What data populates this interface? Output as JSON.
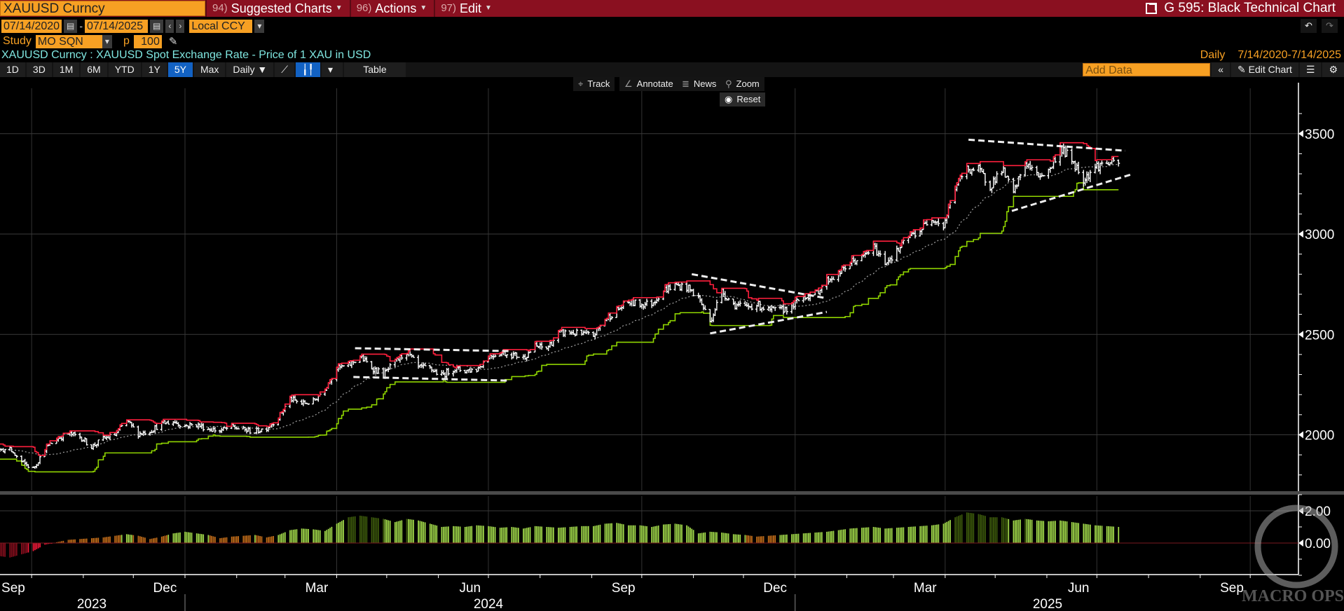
{
  "header": {
    "security": "XAUUSD Curncy",
    "menus": [
      {
        "num": "94)",
        "label": "Suggested Charts"
      },
      {
        "num": "96)",
        "label": "Actions"
      },
      {
        "num": "97)",
        "label": "Edit"
      }
    ],
    "function_title": "G 595: Black Technical Chart"
  },
  "dates": {
    "start": "07/14/2020",
    "end": "07/14/2025",
    "separator": "-",
    "currency": "Local CCY"
  },
  "study": {
    "label": "Study",
    "value": "MO SQN",
    "p_label": "p",
    "p_value": "100"
  },
  "description": "XAUUSD Curncy : XAUUSD Spot Exchange Rate - Price of 1 XAU in USD",
  "frequency": "Daily",
  "range_text": "7/14/2020-7/14/2025",
  "toolbar": {
    "periods": [
      "1D",
      "3D",
      "1M",
      "6M",
      "YTD",
      "1Y",
      "5Y",
      "Max"
    ],
    "selected": "5Y",
    "interval": "Daily ▼",
    "table": "Table",
    "add_data_placeholder": "Add Data",
    "edit_chart": "Edit Chart",
    "collapse": "«"
  },
  "chart_tools": {
    "track": "Track",
    "annotate": "Annotate",
    "news": "News",
    "zoom": "Zoom",
    "reset": "Reset"
  },
  "logo": {
    "text": "MACRO OPS"
  },
  "colors": {
    "header": "#8a1020",
    "field": "#f7a023",
    "upper_band": "#ff1f3d",
    "lower_band": "#8fd400",
    "bars": "#ffffff",
    "selected": "#1262c4"
  },
  "chart_data": {
    "type": "ohlc",
    "yticks": [
      2000,
      2500,
      3000,
      3500
    ],
    "indicator_ticks": [
      "0.00",
      "2.00"
    ],
    "indicator_values": [
      0,
      2
    ],
    "ylim": [
      1800,
      3650
    ],
    "xlim": [
      "2023-08-21",
      "2025-09-30"
    ],
    "x_month_labels": [
      {
        "d": "2023-09",
        "t": "Sep"
      },
      {
        "d": "2023-12",
        "t": "Dec"
      },
      {
        "d": "2024-03",
        "t": "Mar"
      },
      {
        "d": "2024-06",
        "t": "Jun"
      },
      {
        "d": "2024-09",
        "t": "Sep"
      },
      {
        "d": "2024-12",
        "t": "Dec"
      },
      {
        "d": "2025-03",
        "t": "Mar"
      },
      {
        "d": "2025-06",
        "t": "Jun"
      },
      {
        "d": "2025-09",
        "t": "Sep"
      }
    ],
    "x_year_labels": [
      "2023",
      "2024",
      "2025"
    ],
    "weekly_start": "2023-08-21",
    "weekly_close": [
      1915,
      1940,
      1920,
      1925,
      1925,
      1865,
      1830,
      1930,
      1980,
      2005,
      1990,
      1940,
      1980,
      2000,
      2070,
      2005,
      2020,
      2055,
      2065,
      2045,
      2050,
      2030,
      2020,
      2040,
      2025,
      2015,
      2035,
      2085,
      2180,
      2155,
      2165,
      2235,
      2330,
      2345,
      2390,
      2335,
      2300,
      2360,
      2415,
      2335,
      2330,
      2295,
      2330,
      2320,
      2325,
      2390,
      2410,
      2400,
      2385,
      2440,
      2430,
      2505,
      2510,
      2500,
      2495,
      2575,
      2620,
      2660,
      2650,
      2655,
      2720,
      2745,
      2735,
      2685,
      2565,
      2715,
      2650,
      2635,
      2650,
      2620,
      2620,
      2640,
      2690,
      2700,
      2770,
      2800,
      2860,
      2880,
      2935,
      2860,
      2910,
      2985,
      3020,
      3085,
      3040,
      3235,
      3325,
      3320,
      3240,
      3325,
      3200,
      3360,
      3290,
      3310,
      3430,
      3370,
      3275,
      3335,
      3355,
      3350
    ],
    "sqn_weekly": [
      -0.4,
      -0.3,
      -0.6,
      -0.8,
      -0.9,
      -0.7,
      -0.5,
      -0.1,
      0.05,
      0.2,
      0.25,
      0.3,
      0.35,
      0.45,
      0.55,
      0.45,
      0.25,
      0.4,
      0.6,
      0.7,
      0.6,
      0.5,
      0.3,
      0.4,
      0.45,
      0.5,
      0.35,
      0.5,
      0.8,
      0.9,
      0.85,
      0.75,
      1.2,
      1.6,
      1.7,
      1.6,
      1.5,
      1.3,
      1.5,
      1.4,
      1.2,
      1.0,
      1.05,
      1.0,
      1.1,
      1.05,
      0.95,
      1.0,
      0.9,
      1.05,
      1.0,
      0.95,
      1.0,
      1.05,
      1.05,
      1.2,
      1.25,
      1.1,
      1.1,
      1.0,
      1.15,
      1.2,
      1.1,
      0.6,
      0.7,
      0.65,
      0.55,
      0.5,
      0.4,
      0.45,
      0.5,
      0.55,
      0.6,
      0.65,
      0.7,
      0.8,
      0.9,
      0.95,
      1.0,
      0.9,
      0.95,
      1.0,
      1.05,
      1.1,
      1.2,
      1.6,
      1.9,
      1.8,
      1.6,
      1.6,
      1.4,
      1.5,
      1.4,
      1.35,
      1.4,
      1.3,
      1.2,
      1.1,
      1.05,
      1.0
    ],
    "trendlines": [
      {
        "from": [
          "2024-04-12",
          2431
        ],
        "to": [
          "2024-07-14",
          2417
        ]
      },
      {
        "from": [
          "2024-04-11",
          2288
        ],
        "to": [
          "2024-07-13",
          2270
        ]
      },
      {
        "from": [
          "2024-10-31",
          2800
        ],
        "to": [
          "2025-01-20",
          2680
        ]
      },
      {
        "from": [
          "2024-11-11",
          2505
        ],
        "to": [
          "2025-01-20",
          2612
        ]
      },
      {
        "from": [
          "2025-04-15",
          3470
        ],
        "to": [
          "2025-07-18",
          3415
        ]
      },
      {
        "from": [
          "2025-05-11",
          3115
        ],
        "to": [
          "2025-07-21",
          3295
        ]
      }
    ]
  }
}
